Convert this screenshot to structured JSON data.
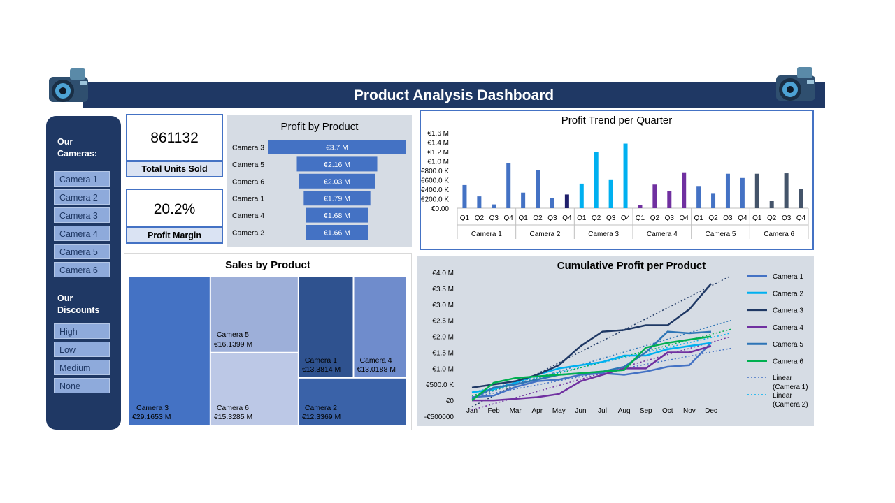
{
  "header": {
    "title": "Product Analysis Dashboard"
  },
  "sidebar": {
    "cameras_heading_1": "Our",
    "cameras_heading_2": "Cameras:",
    "cameras": [
      "Camera 1",
      "Camera 2",
      "Camera 3",
      "Camera 4",
      "Camera 5",
      "Camera 6"
    ],
    "discounts_heading_1": "Our",
    "discounts_heading_2": "Discounts",
    "discounts": [
      "High",
      "Low",
      "Medium",
      "None"
    ]
  },
  "kpis": {
    "units": {
      "value": "861132",
      "label": "Total Units Sold"
    },
    "margin": {
      "value": "20.2%",
      "label": "Profit Margin"
    }
  },
  "colors": {
    "navy": "#1f3864",
    "blue": "#4472c4",
    "panel_bg": "#d6dce4"
  },
  "chart_data": [
    {
      "id": "profit_by_product",
      "type": "bar",
      "orientation": "horizontal-funnel",
      "title": "Profit by Product",
      "categories": [
        "Camera 3",
        "Camera 5",
        "Camera 6",
        "Camera 1",
        "Camera 4",
        "Camera 2"
      ],
      "values": [
        3.7,
        2.16,
        2.03,
        1.79,
        1.68,
        1.66
      ],
      "labels": [
        "€3.7 M",
        "€2.16 M",
        "€2.03 M",
        "€1.79 M",
        "€1.68 M",
        "€1.66 M"
      ],
      "color": "#4472c4"
    },
    {
      "id": "profit_trend",
      "type": "bar",
      "title": "Profit Trend per Quarter",
      "y_ticks": [
        "€1.6 M",
        "€1.4 M",
        "€1.2 M",
        "€1.0 M",
        "€800.0 K",
        "€600.0 K",
        "€400.0 K",
        "€200.0 K",
        "€0.00"
      ],
      "ylim": [
        0,
        1600000
      ],
      "quarters": [
        "Q1",
        "Q2",
        "Q3",
        "Q4"
      ],
      "groups": [
        {
          "name": "Camera 1",
          "values": [
            490000,
            250000,
            80000,
            950000
          ],
          "colors": [
            "#4472c4",
            "#4472c4",
            "#4472c4",
            "#4472c4"
          ]
        },
        {
          "name": "Camera 2",
          "values": [
            330000,
            810000,
            220000,
            290000
          ],
          "colors": [
            "#4472c4",
            "#4472c4",
            "#4472c4",
            "#1f1f6b"
          ]
        },
        {
          "name": "Camera 3",
          "values": [
            520000,
            1190000,
            610000,
            1370000
          ],
          "colors": [
            "#00b0f0",
            "#00b0f0",
            "#00b0f0",
            "#00b0f0"
          ]
        },
        {
          "name": "Camera 4",
          "values": [
            70000,
            500000,
            360000,
            760000
          ],
          "colors": [
            "#7030a0",
            "#7030a0",
            "#7030a0",
            "#7030a0"
          ]
        },
        {
          "name": "Camera 5",
          "values": [
            470000,
            320000,
            730000,
            640000
          ],
          "colors": [
            "#4472c4",
            "#4472c4",
            "#4472c4",
            "#4472c4"
          ]
        },
        {
          "name": "Camera 6",
          "values": [
            730000,
            150000,
            740000,
            400000
          ],
          "colors": [
            "#44546a",
            "#44546a",
            "#44546a",
            "#44546a"
          ]
        }
      ]
    },
    {
      "id": "sales_by_product",
      "type": "treemap",
      "title": "Sales by Product",
      "items": [
        {
          "name": "Camera 3",
          "label": "€29.1653 M",
          "value": 29.1653,
          "color": "#4472c4"
        },
        {
          "name": "Camera 5",
          "label": "€16.1399 M",
          "value": 16.1399,
          "color": "#9dafd9"
        },
        {
          "name": "Camera 6",
          "label": "€15.3285 M",
          "value": 15.3285,
          "color": "#bcc8e6"
        },
        {
          "name": "Camera 1",
          "label": "€13.3814 M",
          "value": 13.3814,
          "color": "#2f528f"
        },
        {
          "name": "Camera 4",
          "label": "€13.0188 M",
          "value": 13.0188,
          "color": "#6f8ccc"
        },
        {
          "name": "Camera 2",
          "label": "€12.3369 M",
          "value": 12.3369,
          "color": "#3a62a8"
        }
      ]
    },
    {
      "id": "cumulative_profit",
      "type": "line",
      "title": "Cumulative Profit per Product",
      "x": [
        "Jan",
        "Feb",
        "Mar",
        "Apr",
        "May",
        "Jun",
        "Jul",
        "Aug",
        "Sep",
        "Oct",
        "Nov",
        "Dec"
      ],
      "y_ticks": [
        "€4.0 M",
        "€3.5 M",
        "€3.0 M",
        "€2.5 M",
        "€2.0 M",
        "€1.5 M",
        "€1.0 M",
        "€500.0 K",
        "€0",
        "-€500000"
      ],
      "ylim": [
        -500000,
        4000000
      ],
      "series": [
        {
          "name": "Camera 1",
          "color": "#4472c4",
          "values": [
            100000,
            150000,
            420000,
            600000,
            650000,
            800000,
            850000,
            800000,
            900000,
            1050000,
            1100000,
            1800000
          ]
        },
        {
          "name": "Camera 2",
          "color": "#00b0f0",
          "values": [
            250000,
            350000,
            550000,
            800000,
            1000000,
            1100000,
            1200000,
            1400000,
            1400000,
            1600000,
            1700000,
            1800000
          ]
        },
        {
          "name": "Camera 3",
          "color": "#1f3864",
          "values": [
            400000,
            500000,
            600000,
            800000,
            1100000,
            1700000,
            2150000,
            2200000,
            2350000,
            2350000,
            2850000,
            3650000
          ]
        },
        {
          "name": "Camera 4",
          "color": "#7030a0",
          "values": [
            0,
            0,
            50000,
            100000,
            200000,
            600000,
            800000,
            1000000,
            1000000,
            1500000,
            1500000,
            1700000
          ]
        },
        {
          "name": "Camera 5",
          "color": "#2e75b6",
          "values": [
            50000,
            400000,
            500000,
            650000,
            800000,
            850000,
            900000,
            1050000,
            1500000,
            2150000,
            2100000,
            2150000
          ]
        },
        {
          "name": "Camera 6",
          "color": "#00b050",
          "values": [
            0,
            550000,
            700000,
            750000,
            800000,
            850000,
            900000,
            950000,
            1650000,
            1800000,
            1900000,
            2000000
          ]
        }
      ],
      "trendlines": [
        {
          "name": "Linear (Camera 1)",
          "color": "#4472c4",
          "values": [
            100000,
            1500000
          ]
        },
        {
          "name": "Linear (Camera 2)",
          "color": "#00b0f0",
          "values": [
            250000,
            1950000
          ]
        },
        {
          "name": "Linear (Camera 3)",
          "color": "#1f3864",
          "values": [
            -200000,
            3550000
          ]
        },
        {
          "name": "Linear (Camera 4)",
          "color": "#7030a0",
          "values": [
            -300000,
            1800000
          ]
        },
        {
          "name": "Linear (Camera 5)",
          "color": "#2e75b6",
          "values": [
            100000,
            2300000
          ]
        },
        {
          "name": "Linear (Camera 6)",
          "color": "#00b050",
          "values": [
            150000,
            2050000
          ]
        }
      ],
      "legend": [
        "Camera 1",
        "Camera 2",
        "Camera 3",
        "Camera 4",
        "Camera 5",
        "Camera 6"
      ],
      "legend_trend_1_a": "Linear",
      "legend_trend_1_b": "(Camera 1)",
      "legend_trend_2_a": "Linear",
      "legend_trend_2_b": "(Camera 2)"
    }
  ]
}
